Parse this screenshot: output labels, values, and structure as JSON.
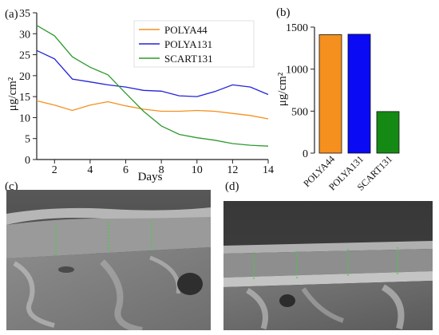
{
  "panel_labels": {
    "a": "(a)",
    "b": "(b)",
    "c": "(c)",
    "d": "(d)"
  },
  "chart_data": [
    {
      "type": "line",
      "xlabel": "Days",
      "ylabel": "μg/cm²",
      "xlim": [
        1,
        14
      ],
      "ylim": [
        0,
        35
      ],
      "xticks": [
        2,
        4,
        6,
        8,
        10,
        12,
        14
      ],
      "yticks": [
        0,
        5,
        10,
        15,
        20,
        25,
        30,
        35
      ],
      "grid": false,
      "legend_position": "top-right",
      "series": [
        {
          "name": "POLYA44",
          "color": "#f5901e",
          "x": [
            1,
            2,
            3,
            4,
            5,
            6,
            7,
            8,
            9,
            10,
            11,
            12,
            13,
            14
          ],
          "values": [
            14,
            13,
            11.7,
            13,
            13.8,
            12.8,
            12,
            11.5,
            11.5,
            11.7,
            11.5,
            11,
            10.5,
            9.7
          ]
        },
        {
          "name": "POLYA131",
          "color": "#2323d8",
          "x": [
            1,
            2,
            3,
            4,
            5,
            6,
            7,
            8,
            9,
            10,
            11,
            12,
            13,
            14
          ],
          "values": [
            26,
            24,
            19.2,
            18.5,
            17.8,
            17.3,
            16.5,
            16.3,
            15.2,
            15,
            16.2,
            17.8,
            17.3,
            15.5
          ]
        },
        {
          "name": "SCART131",
          "color": "#2f9a2f",
          "x": [
            1,
            2,
            3,
            4,
            5,
            6,
            7,
            8,
            9,
            10,
            11,
            12,
            13,
            14
          ],
          "values": [
            32,
            29.5,
            24.5,
            22,
            20.2,
            15.8,
            11.5,
            8,
            6,
            5.2,
            4.6,
            3.8,
            3.4,
            3.2
          ]
        }
      ]
    },
    {
      "type": "bar",
      "ylabel": "μg/cm²",
      "ylim": [
        0,
        1500
      ],
      "yticks": [
        0,
        500,
        1000,
        1500
      ],
      "categories": [
        "POLYA44",
        "POLYA131",
        "SCART131"
      ],
      "values": [
        1410,
        1415,
        495
      ],
      "colors": [
        "#f5901e",
        "#0a0af5",
        "#148a14"
      ]
    }
  ],
  "images": {
    "c": {
      "description": "SEM cross-section micrograph (c)"
    },
    "d": {
      "description": "SEM cross-section micrograph (d)"
    }
  }
}
